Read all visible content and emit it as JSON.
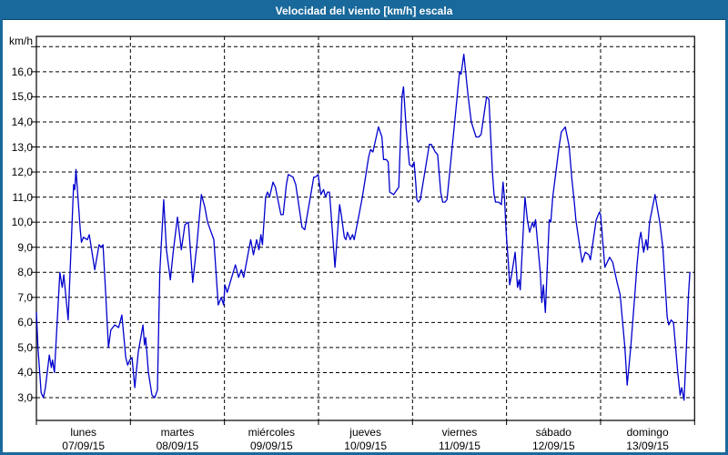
{
  "window": {
    "title": "Velocidad del viento [km/h] escala"
  },
  "y_axis": {
    "unit_label": "km/h",
    "ticks": [
      {
        "label": "16,0",
        "value": 16
      },
      {
        "label": "15,0",
        "value": 15
      },
      {
        "label": "14,0",
        "value": 14
      },
      {
        "label": "13,0",
        "value": 13
      },
      {
        "label": "12,0",
        "value": 12
      },
      {
        "label": "11,0",
        "value": 11
      },
      {
        "label": "10,0",
        "value": 10
      },
      {
        "label": "9,0",
        "value": 9
      },
      {
        "label": "8,0",
        "value": 8
      },
      {
        "label": "7,0",
        "value": 7
      },
      {
        "label": "6,0",
        "value": 6
      },
      {
        "label": "5,0",
        "value": 5
      },
      {
        "label": "4,0",
        "value": 4
      },
      {
        "label": "3,0",
        "value": 3
      }
    ]
  },
  "x_axis": {
    "days": [
      {
        "name": "lunes",
        "date": "07/09/15"
      },
      {
        "name": "martes",
        "date": "08/09/15"
      },
      {
        "name": "miércoles",
        "date": "09/09/15"
      },
      {
        "name": "jueves",
        "date": "10/09/15"
      },
      {
        "name": "viernes",
        "date": "11/09/15"
      },
      {
        "name": "sábado",
        "date": "12/09/15"
      },
      {
        "name": "domingo",
        "date": "13/09/15"
      }
    ]
  },
  "colors": {
    "frame": "#19699c",
    "titlebar": "#19699c",
    "title_text": "#ffffff",
    "line": "#0000cd",
    "grid": "#000000",
    "label_text": "#000000",
    "background": "#ffffff"
  },
  "chart_data": {
    "type": "line",
    "title": "Velocidad del viento [km/h] escala",
    "ylabel": "km/h",
    "x_unit": "hours from lunes 07/09/15 00:00",
    "xlim": [
      0,
      168
    ],
    "ylim": [
      3,
      17
    ],
    "grid": "dashed, horizontal every 1 km/h (3..17), vertical at each day boundary",
    "legend": "none",
    "series": [
      {
        "name": "Velocidad del viento [km/h]",
        "points": [
          [
            0,
            6.4
          ],
          [
            0.4,
            5.0
          ],
          [
            1.2,
            3.2
          ],
          [
            1.8,
            3.0
          ],
          [
            2.3,
            3.4
          ],
          [
            3.3,
            4.7
          ],
          [
            3.8,
            4.2
          ],
          [
            4.1,
            4.5
          ],
          [
            4.6,
            4.0
          ],
          [
            6,
            8.0
          ],
          [
            6.6,
            7.4
          ],
          [
            7,
            7.9
          ],
          [
            8.1,
            6.1
          ],
          [
            9.5,
            11.5
          ],
          [
            9.8,
            11.3
          ],
          [
            10.1,
            12.1
          ],
          [
            11.2,
            9.7
          ],
          [
            11.5,
            9.2
          ],
          [
            12,
            9.4
          ],
          [
            13,
            9.3
          ],
          [
            13.5,
            9.5
          ],
          [
            14.9,
            8.1
          ],
          [
            16,
            9.1
          ],
          [
            16.5,
            9.0
          ],
          [
            17,
            9.1
          ],
          [
            17.7,
            7.1
          ],
          [
            18.4,
            5.0
          ],
          [
            19,
            5.7
          ],
          [
            20,
            5.9
          ],
          [
            21,
            5.8
          ],
          [
            21.8,
            6.3
          ],
          [
            22.8,
            4.6
          ],
          [
            23.3,
            4.3
          ],
          [
            23.8,
            4.5
          ],
          [
            24.4,
            4.6
          ],
          [
            25.1,
            3.4
          ],
          [
            26,
            4.8
          ],
          [
            27.2,
            5.9
          ],
          [
            27.6,
            5.1
          ],
          [
            27.9,
            5.4
          ],
          [
            28.6,
            4.0
          ],
          [
            29.5,
            3.1
          ],
          [
            30.2,
            3.0
          ],
          [
            30.9,
            3.3
          ],
          [
            31.5,
            8.0
          ],
          [
            32.5,
            10.9
          ],
          [
            33.2,
            8.9
          ],
          [
            34.2,
            7.7
          ],
          [
            34.9,
            8.8
          ],
          [
            36,
            10.2
          ],
          [
            37,
            8.9
          ],
          [
            37.9,
            9.9
          ],
          [
            38.8,
            10.0
          ],
          [
            39.9,
            7.6
          ],
          [
            40.9,
            9.0
          ],
          [
            42.1,
            11.1
          ],
          [
            43,
            10.6
          ],
          [
            43.7,
            10.0
          ],
          [
            45.3,
            9.3
          ],
          [
            46.4,
            6.7
          ],
          [
            47.2,
            7.0
          ],
          [
            47.8,
            6.7
          ],
          [
            48.1,
            7.5
          ],
          [
            48.7,
            7.2
          ],
          [
            50.8,
            8.3
          ],
          [
            51.6,
            7.8
          ],
          [
            52.3,
            8.1
          ],
          [
            52.9,
            7.8
          ],
          [
            54.7,
            9.3
          ],
          [
            55.4,
            8.7
          ],
          [
            56.2,
            9.3
          ],
          [
            56.8,
            8.9
          ],
          [
            57.3,
            9.5
          ],
          [
            57.7,
            9.1
          ],
          [
            58.5,
            11.0
          ],
          [
            59,
            11.2
          ],
          [
            59.5,
            11.0
          ],
          [
            60.4,
            11.6
          ],
          [
            61,
            11.4
          ],
          [
            62.4,
            10.3
          ],
          [
            63,
            10.3
          ],
          [
            63.8,
            11.5
          ],
          [
            64.3,
            11.9
          ],
          [
            65.5,
            11.8
          ],
          [
            66.2,
            11.5
          ],
          [
            67.8,
            9.8
          ],
          [
            68.5,
            9.7
          ],
          [
            70.8,
            11.8
          ],
          [
            71.2,
            11.8
          ],
          [
            71.9,
            11.9
          ],
          [
            72.6,
            11.1
          ],
          [
            73.3,
            11.3
          ],
          [
            73.8,
            11.0
          ],
          [
            74.3,
            11.2
          ],
          [
            74.8,
            11.2
          ],
          [
            75.1,
            10.6
          ],
          [
            76.2,
            8.2
          ],
          [
            77.4,
            10.7
          ],
          [
            77.8,
            10.3
          ],
          [
            78.6,
            9.4
          ],
          [
            79,
            9.3
          ],
          [
            79.4,
            9.6
          ],
          [
            80.1,
            9.3
          ],
          [
            80.7,
            9.5
          ],
          [
            81.1,
            9.3
          ],
          [
            82.1,
            10.1
          ],
          [
            83.2,
            11.0
          ],
          [
            84.8,
            12.6
          ],
          [
            85.3,
            12.9
          ],
          [
            85.9,
            12.8
          ],
          [
            87.3,
            13.8
          ],
          [
            88.2,
            13.4
          ],
          [
            88.6,
            12.5
          ],
          [
            89.3,
            12.5
          ],
          [
            89.8,
            12.4
          ],
          [
            90.2,
            11.2
          ],
          [
            91.2,
            11.1
          ],
          [
            92.5,
            11.4
          ],
          [
            93.3,
            15.0
          ],
          [
            93.7,
            15.4
          ],
          [
            94.4,
            13.7
          ],
          [
            95.2,
            12.3
          ],
          [
            96,
            12.2
          ],
          [
            96.4,
            12.4
          ],
          [
            96.8,
            11.6
          ],
          [
            97.1,
            10.9
          ],
          [
            97.5,
            10.8
          ],
          [
            98,
            10.9
          ],
          [
            100.3,
            13.1
          ],
          [
            100.8,
            13.1
          ],
          [
            101.8,
            12.8
          ],
          [
            102.4,
            12.7
          ],
          [
            103.2,
            11.2
          ],
          [
            103.7,
            10.8
          ],
          [
            104.3,
            10.8
          ],
          [
            104.8,
            10.9
          ],
          [
            106.7,
            13.9
          ],
          [
            108,
            16.0
          ],
          [
            108.4,
            15.9
          ],
          [
            109.1,
            16.7
          ],
          [
            110.2,
            15.0
          ],
          [
            111,
            14.0
          ],
          [
            112.2,
            13.4
          ],
          [
            112.9,
            13.4
          ],
          [
            113.5,
            13.5
          ],
          [
            114.9,
            15.0
          ],
          [
            115.5,
            14.9
          ],
          [
            116.4,
            12.0
          ],
          [
            116.8,
            11.1
          ],
          [
            117.2,
            10.8
          ],
          [
            118,
            10.8
          ],
          [
            118.7,
            10.7
          ],
          [
            119.1,
            11.6
          ],
          [
            119.5,
            10.9
          ],
          [
            119.9,
            9.6
          ],
          [
            120.5,
            8.3
          ],
          [
            120.8,
            7.5
          ],
          [
            121.3,
            7.9
          ],
          [
            122.2,
            8.8
          ],
          [
            122.8,
            7.4
          ],
          [
            123.2,
            7.7
          ],
          [
            123.5,
            7.3
          ],
          [
            124.7,
            11.0
          ],
          [
            125.3,
            10.1
          ],
          [
            125.9,
            9.6
          ],
          [
            126.6,
            10.0
          ],
          [
            127,
            9.8
          ],
          [
            127.4,
            10.1
          ],
          [
            128.6,
            8.0
          ],
          [
            129,
            6.8
          ],
          [
            129.4,
            7.5
          ],
          [
            129.9,
            6.4
          ],
          [
            130.9,
            10.1
          ],
          [
            131.3,
            10.0
          ],
          [
            131.8,
            11.0
          ],
          [
            132.6,
            12.0
          ],
          [
            133.4,
            13.0
          ],
          [
            134,
            13.6
          ],
          [
            135,
            13.8
          ],
          [
            136,
            13.0
          ],
          [
            136.7,
            11.7
          ],
          [
            137.3,
            10.8
          ],
          [
            137.7,
            10.1
          ],
          [
            138.7,
            9.0
          ],
          [
            139.3,
            8.4
          ],
          [
            140.1,
            8.8
          ],
          [
            141,
            8.7
          ],
          [
            141.4,
            8.5
          ],
          [
            142.9,
            10.1
          ],
          [
            143.7,
            10.4
          ],
          [
            144,
            10.3
          ],
          [
            145.1,
            8.2
          ],
          [
            146.3,
            8.6
          ],
          [
            147.1,
            8.4
          ],
          [
            148.2,
            7.6
          ],
          [
            149,
            7.1
          ],
          [
            150.2,
            5.0
          ],
          [
            150.8,
            3.5
          ],
          [
            151.7,
            5.0
          ],
          [
            152.7,
            7.0
          ],
          [
            153.3,
            8.3
          ],
          [
            153.9,
            9.3
          ],
          [
            154.3,
            9.6
          ],
          [
            155,
            8.8
          ],
          [
            155.6,
            9.3
          ],
          [
            156,
            8.9
          ],
          [
            156.5,
            10.0
          ],
          [
            157.9,
            11.1
          ],
          [
            159.1,
            10.0
          ],
          [
            159.9,
            9.0
          ],
          [
            161,
            6.2
          ],
          [
            161.4,
            5.9
          ],
          [
            162,
            6.1
          ],
          [
            162.6,
            6.0
          ],
          [
            163.7,
            4.0
          ],
          [
            164.3,
            3.1
          ],
          [
            164.7,
            3.4
          ],
          [
            165.3,
            2.9
          ],
          [
            165.9,
            5.0
          ],
          [
            166.4,
            7.0
          ],
          [
            166.8,
            8.0
          ]
        ]
      }
    ]
  }
}
